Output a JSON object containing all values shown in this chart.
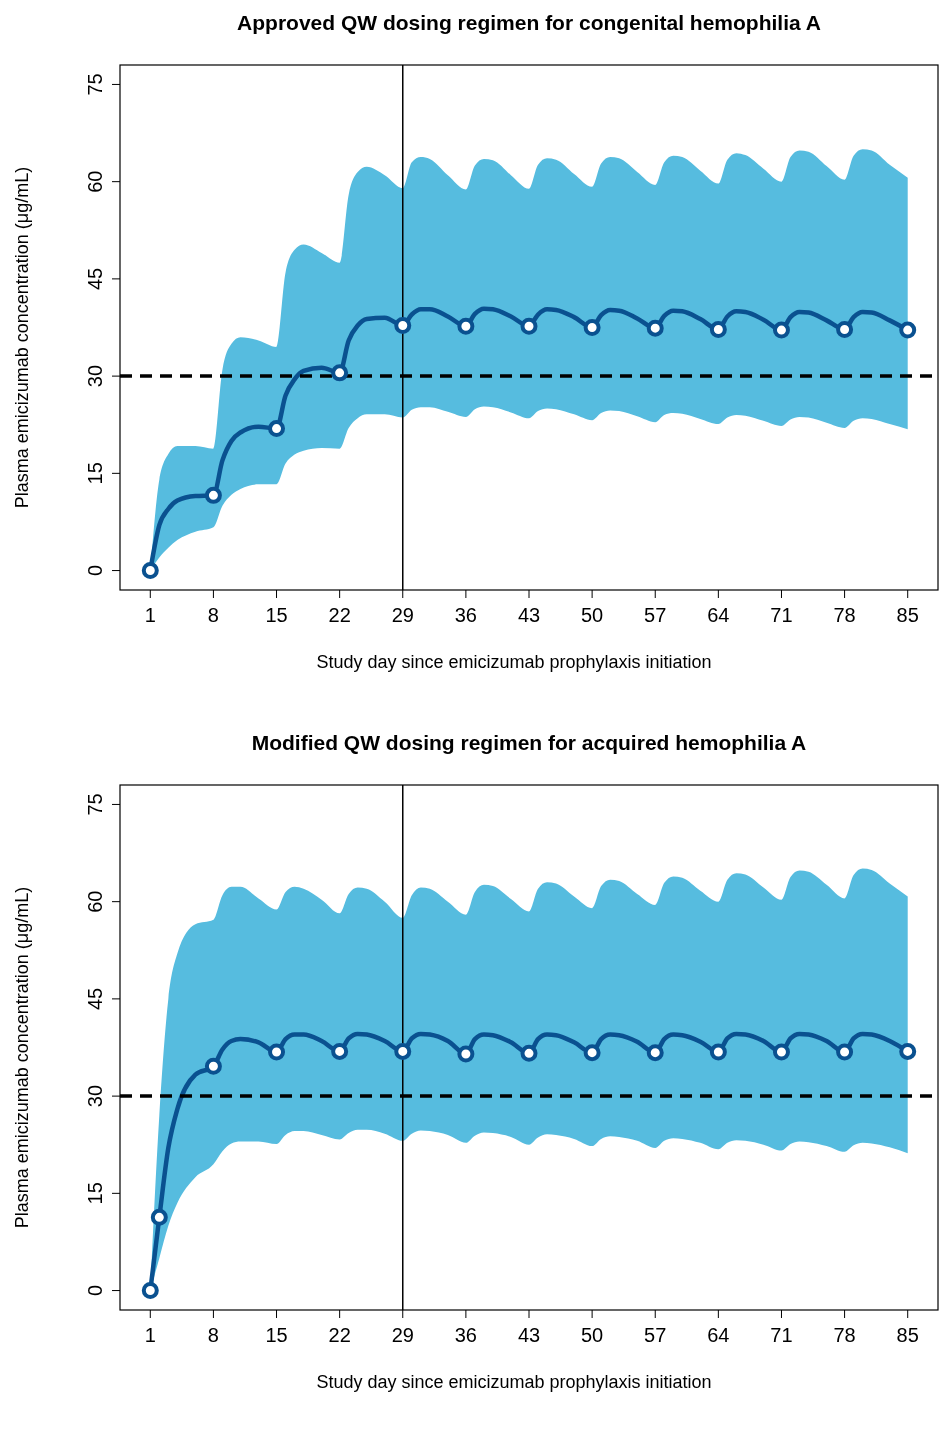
{
  "chart_data": [
    {
      "type": "line",
      "title": "Approved QW dosing regimen for congenital hemophilia A",
      "xlabel": "Study day since emicizumab prophylaxis initiation",
      "ylabel": "Plasma emicizumab concentration (μg/mL)",
      "xlim": [
        -2.36,
        88.36
      ],
      "ylim": [
        -3,
        78
      ],
      "xticks": [
        1,
        8,
        15,
        22,
        29,
        36,
        43,
        50,
        57,
        64,
        71,
        78,
        85
      ],
      "yticks": [
        0,
        15,
        30,
        45,
        60,
        75
      ],
      "grid": false,
      "x": [
        1,
        2,
        3,
        4,
        6,
        8,
        9,
        10,
        11,
        13,
        15,
        16,
        17,
        18,
        20,
        22,
        23,
        24,
        25,
        27,
        29,
        30,
        31,
        32,
        34,
        36,
        37,
        38,
        39,
        41,
        43,
        44,
        45,
        46,
        48,
        50,
        51,
        52,
        53,
        55,
        57,
        58,
        59,
        60,
        62,
        64,
        65,
        66,
        67,
        69,
        71,
        72,
        73,
        74,
        76,
        78,
        79,
        80,
        81,
        83,
        85
      ],
      "ref_lines": [
        {
          "axis": "y",
          "value": 30,
          "color": "#000000",
          "line_style": "dashed"
        },
        {
          "axis": "x",
          "value": 29,
          "color": "#000000",
          "line_style": "solid"
        }
      ],
      "series": [
        {
          "color": "#0a5190",
          "marker": "none",
          "line_style": "solid",
          "values": [
            0,
            7,
            9.5,
            10.8,
            11.5,
            11.6,
            17,
            20,
            21.3,
            22.2,
            21.9,
            27,
            29.5,
            30.8,
            31.3,
            30.5,
            35.5,
            37.8,
            38.8,
            39.0,
            37.8,
            39.5,
            40.3,
            40.3,
            39.2,
            37.7,
            39.6,
            40.4,
            40.3,
            39.2,
            37.7,
            39.5,
            40.3,
            40.2,
            39.1,
            37.5,
            39.4,
            40.2,
            40.1,
            38.9,
            37.4,
            39.3,
            40.1,
            40.0,
            38.8,
            37.2,
            39.2,
            40.0,
            39.9,
            38.7,
            37.1,
            39.1,
            39.9,
            39.8,
            38.6,
            37.2,
            39.1,
            39.9,
            39.8,
            38.6,
            37.1
          ],
          "upper": [
            0,
            14,
            18,
            19.2,
            19.2,
            18.8,
            31,
            35,
            36,
            35.5,
            34.5,
            46,
            49.5,
            50.3,
            49,
            47.5,
            58,
            61.5,
            62.3,
            61,
            59,
            63,
            63.8,
            63.5,
            61,
            58.8,
            62.5,
            63.5,
            63.3,
            61,
            58.9,
            62.6,
            63.6,
            63.4,
            61.2,
            59.2,
            62.8,
            63.8,
            63.6,
            61.5,
            59.5,
            63,
            64,
            63.8,
            61.7,
            59.7,
            63.4,
            64.4,
            64.1,
            62,
            60,
            63.8,
            64.8,
            64.6,
            62.4,
            60.3,
            64,
            65,
            64.8,
            62.6,
            60.6
          ],
          "lower": [
            0,
            2,
            3.5,
            4.7,
            6,
            6.7,
            10,
            11.7,
            12.6,
            13.3,
            13.3,
            16.5,
            17.9,
            18.5,
            18.9,
            18.8,
            22,
            23.5,
            24.1,
            24.1,
            23.6,
            24.8,
            25.2,
            25.2,
            24.5,
            23.7,
            24.9,
            25.3,
            25.2,
            24.4,
            23.5,
            24.6,
            25,
            24.9,
            24.1,
            23.2,
            24.3,
            24.7,
            24.6,
            23.8,
            22.9,
            24,
            24.3,
            24.2,
            23.4,
            22.6,
            23.6,
            24,
            23.9,
            23.1,
            22.3,
            23.3,
            23.7,
            23.6,
            22.8,
            22.0,
            23.1,
            23.5,
            23.4,
            22.6,
            21.8
          ]
        },
        {
          "type": "scatter",
          "color": "#0a5190",
          "marker": "circle",
          "x": [
            1,
            8,
            15,
            22,
            29,
            36,
            43,
            50,
            57,
            64,
            71,
            78,
            85
          ],
          "values": [
            0,
            11.6,
            21.9,
            30.5,
            37.8,
            37.7,
            37.7,
            37.5,
            37.4,
            37.2,
            37.1,
            37.2,
            37.1
          ]
        }
      ]
    },
    {
      "type": "line",
      "title": "Modified QW dosing regimen for acquired hemophilia A",
      "xlabel": "Study day since emicizumab prophylaxis initiation",
      "ylabel": "Plasma emicizumab concentration (μg/mL)",
      "xlim": [
        -2.36,
        88.36
      ],
      "ylim": [
        -3,
        78
      ],
      "xticks": [
        1,
        8,
        15,
        22,
        29,
        36,
        43,
        50,
        57,
        64,
        71,
        78,
        85
      ],
      "yticks": [
        0,
        15,
        30,
        45,
        60,
        75
      ],
      "grid": false,
      "x": [
        1,
        2,
        3,
        4,
        6,
        8,
        9,
        10,
        11,
        13,
        15,
        16,
        17,
        18,
        20,
        22,
        23,
        24,
        25,
        27,
        29,
        30,
        31,
        32,
        34,
        36,
        37,
        38,
        39,
        41,
        43,
        44,
        45,
        46,
        48,
        50,
        51,
        52,
        53,
        55,
        57,
        58,
        59,
        60,
        62,
        64,
        65,
        66,
        67,
        69,
        71,
        72,
        73,
        74,
        76,
        78,
        79,
        80,
        81,
        83,
        85
      ],
      "ref_lines": [
        {
          "axis": "y",
          "value": 30,
          "color": "#000000",
          "line_style": "dashed"
        },
        {
          "axis": "x",
          "value": 29,
          "color": "#000000",
          "line_style": "solid"
        }
      ],
      "series": [
        {
          "color": "#0a5190",
          "marker": "none",
          "line_style": "solid",
          "values": [
            0,
            11.3,
            22,
            28,
            33.3,
            34.6,
            37.2,
            38.5,
            38.8,
            38.3,
            36.8,
            38.8,
            39.5,
            39.5,
            38.5,
            36.9,
            38.9,
            39.6,
            39.5,
            38.5,
            36.9,
            38.9,
            39.6,
            39.5,
            38.5,
            36.5,
            38.8,
            39.5,
            39.4,
            38.3,
            36.6,
            38.8,
            39.5,
            39.4,
            38.3,
            36.7,
            38.8,
            39.5,
            39.4,
            38.4,
            36.7,
            38.8,
            39.5,
            39.4,
            38.4,
            36.8,
            38.9,
            39.6,
            39.5,
            38.5,
            36.8,
            38.9,
            39.6,
            39.5,
            38.5,
            36.8,
            38.9,
            39.6,
            39.5,
            38.5,
            36.9
          ],
          "upper": [
            0,
            27,
            45,
            52,
            56.5,
            57.2,
            61,
            62.3,
            62.3,
            60.5,
            58.8,
            61.5,
            62.3,
            62,
            60.3,
            58.2,
            61.2,
            62.2,
            62,
            60,
            57.5,
            61,
            62.2,
            62,
            60,
            58,
            61.5,
            62.6,
            62.4,
            60.4,
            58.5,
            62,
            63,
            62.8,
            60.8,
            59,
            62.4,
            63.4,
            63.2,
            61.2,
            59.5,
            62.9,
            63.9,
            63.7,
            61.7,
            60,
            63.4,
            64.4,
            64.2,
            62.2,
            60.3,
            63.8,
            64.8,
            64.6,
            62.6,
            60.5,
            64.1,
            65.1,
            64.9,
            62.8,
            60.8
          ],
          "lower": [
            0,
            5,
            10,
            13.5,
            17.5,
            19.5,
            21.5,
            22.7,
            23,
            23,
            22.6,
            24,
            24.6,
            24.6,
            24,
            23.3,
            24.3,
            24.8,
            24.8,
            24.2,
            23.1,
            24.2,
            24.7,
            24.6,
            24,
            22.8,
            23.9,
            24.4,
            24.3,
            23.7,
            22.5,
            23.6,
            24.1,
            24,
            23.4,
            22.3,
            23.4,
            23.8,
            23.7,
            23.1,
            22.0,
            23.1,
            23.5,
            23.4,
            22.8,
            21.8,
            22.8,
            23.2,
            23.1,
            22.5,
            21.6,
            22.6,
            23,
            22.9,
            22.3,
            21.4,
            22.4,
            22.8,
            22.7,
            22.1,
            21.2
          ]
        },
        {
          "type": "scatter",
          "color": "#0a5190",
          "marker": "circle",
          "x": [
            1,
            2,
            8,
            15,
            22,
            29,
            36,
            43,
            50,
            57,
            64,
            71,
            78,
            85
          ],
          "values": [
            0,
            11.3,
            34.6,
            36.8,
            36.9,
            36.9,
            36.5,
            36.6,
            36.7,
            36.7,
            36.8,
            36.8,
            36.8,
            36.9
          ]
        }
      ]
    }
  ]
}
